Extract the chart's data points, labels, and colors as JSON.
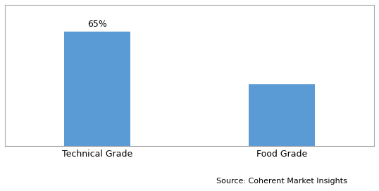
{
  "categories": [
    "Technical Grade",
    "Food Grade"
  ],
  "values": [
    65,
    35
  ],
  "bar_color": "#5B9BD5",
  "label_value": "65%",
  "label_index": 0,
  "source_text": "Source: Coherent Market Insights",
  "ylim": [
    0,
    80
  ],
  "bar_width": 0.18,
  "x_positions": [
    0.25,
    0.75
  ],
  "xlim": [
    0,
    1
  ],
  "background_color": "#ffffff",
  "label_fontsize": 9,
  "tick_fontsize": 9,
  "source_fontsize": 8,
  "border_color": "#aaaaaa",
  "border_linewidth": 0.8
}
